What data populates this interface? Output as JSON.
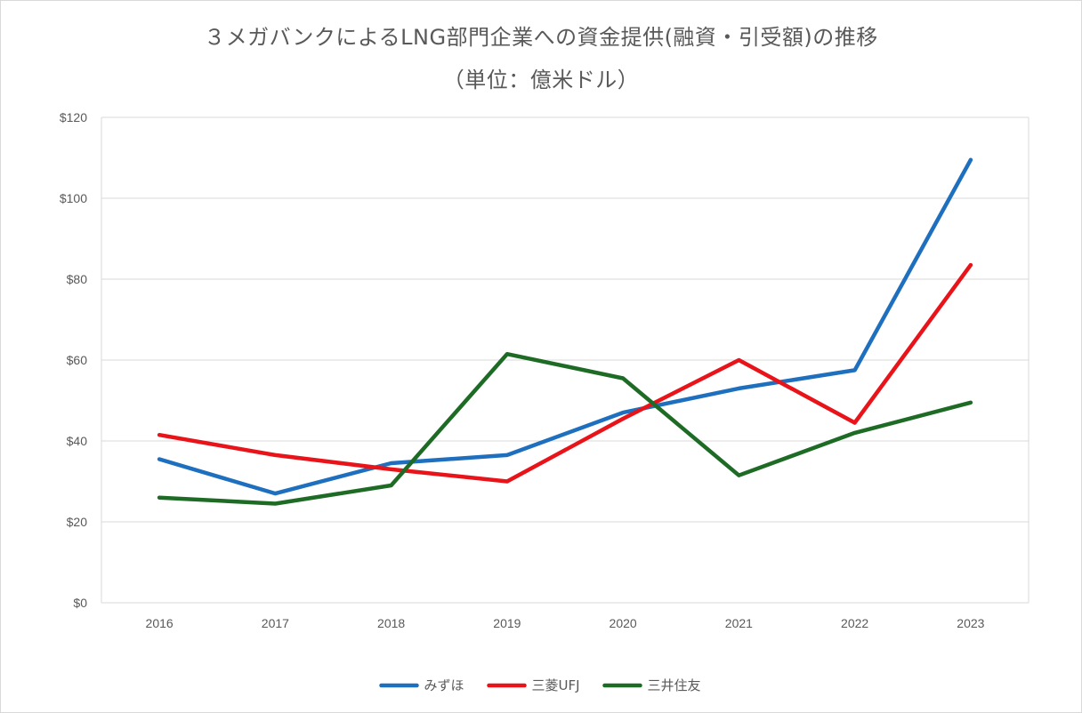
{
  "chart_data": {
    "type": "line",
    "title": "３メガバンクによるLNG部門企業への資金提供(融資・引受額)の推移",
    "subtitle": "（単位：億米ドル）",
    "xlabel": "",
    "ylabel": "",
    "categories": [
      "2016",
      "2017",
      "2018",
      "2019",
      "2020",
      "2021",
      "2022",
      "2023"
    ],
    "ylim": [
      0,
      120
    ],
    "yticks": [
      0,
      20,
      40,
      60,
      80,
      100,
      120
    ],
    "ytick_labels": [
      "$0",
      "$20",
      "$40",
      "$60",
      "$80",
      "$100",
      "$120"
    ],
    "grid": true,
    "legend": "bottom",
    "series": [
      {
        "name": "みずほ",
        "color": "#1f6fbf",
        "values": [
          35.5,
          27,
          34.5,
          36.5,
          47,
          53,
          57.5,
          109.5
        ]
      },
      {
        "name": "三菱UFJ",
        "color": "#e8141a",
        "values": [
          41.5,
          36.5,
          33,
          30,
          45.5,
          60,
          44.5,
          83.5
        ]
      },
      {
        "name": "三井住友",
        "color": "#1d6b24",
        "values": [
          26,
          24.5,
          29,
          61.5,
          55.5,
          31.5,
          42,
          49.5
        ]
      }
    ]
  }
}
